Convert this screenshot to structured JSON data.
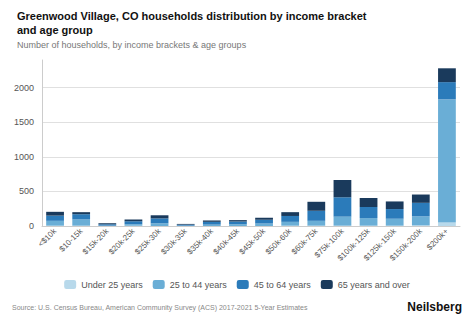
{
  "chart_data": {
    "type": "bar",
    "title": "Greenwood Village, CO households distribution by income bracket\nand age group",
    "subtitle": "Number of households, by income brackets & age groups",
    "annotations": [
      "Source: U.S. Census Bureau, American Community Survey (ACS) 2017-2021 5-Year Estimates",
      "Neilsberg"
    ],
    "categories": [
      "<$10k",
      "$10-15k",
      "$15k-20k",
      "$20k-25k",
      "$25k-30k",
      "$30k-35k",
      "$35k-40k",
      "$40k-45k",
      "$45k-50k",
      "$50k-60k",
      "$60k-75k",
      "$75k-100k",
      "$100k-125k",
      "$125k-150k",
      "$150k-200k",
      "$200k+"
    ],
    "series": [
      {
        "name": "Under 25 years",
        "color": "#b8d9eb",
        "values": [
          5,
          5,
          0,
          5,
          0,
          0,
          0,
          0,
          0,
          5,
          5,
          5,
          5,
          5,
          10,
          50
        ]
      },
      {
        "name": "25 to 44 years",
        "color": "#6aaed6",
        "values": [
          70,
          90,
          5,
          20,
          40,
          5,
          20,
          25,
          35,
          55,
          70,
          130,
          110,
          100,
          130,
          1780
        ]
      },
      {
        "name": "45 to 64 years",
        "color": "#2b7bba",
        "values": [
          75,
          75,
          20,
          45,
          70,
          15,
          40,
          40,
          55,
          85,
          145,
          280,
          160,
          140,
          195,
          250
        ]
      },
      {
        "name": "65 years and over",
        "color": "#1a3a5c",
        "values": [
          55,
          30,
          15,
          25,
          45,
          10,
          20,
          20,
          30,
          55,
          130,
          250,
          130,
          110,
          120,
          200
        ]
      }
    ],
    "stacked": true,
    "ylim": [
      0,
      2400
    ],
    "yticks": [
      0,
      500,
      1000,
      1500,
      2000
    ],
    "grid": true,
    "legend": "bottom"
  }
}
